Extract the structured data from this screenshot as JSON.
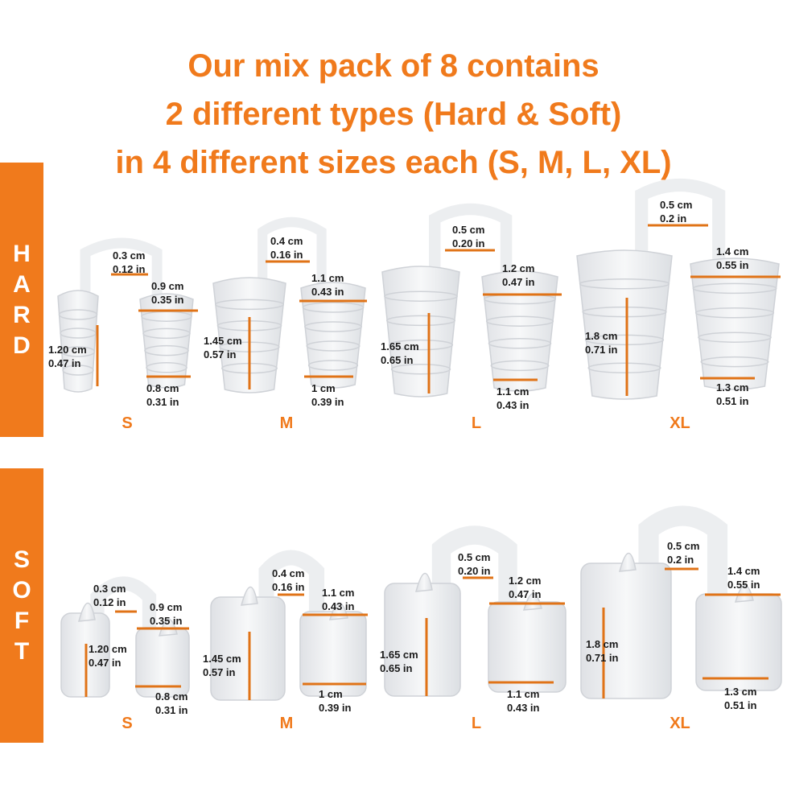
{
  "title": {
    "line1": "Our mix pack of 8 contains",
    "line2": "2 different types (Hard & Soft)",
    "line3": "in 4 different sizes each (S, M, L, XL)"
  },
  "colors": {
    "accent": "#f07a1c",
    "device": "#e9eaec",
    "device_edge": "#c9ccd1",
    "text": "#1a1a1a"
  },
  "hard": {
    "side_label": [
      "H",
      "A",
      "R",
      "D"
    ],
    "sizes": [
      {
        "size": "S",
        "top_cm": "0.3 cm",
        "top_in": "0.12 in",
        "right_cm": "0.9 cm",
        "right_in": "0.35 in",
        "height_cm": "1.20 cm",
        "height_in": "0.47 in",
        "bottom_cm": "0.8 cm",
        "bottom_in": "0.31 in"
      },
      {
        "size": "M",
        "top_cm": "0.4 cm",
        "top_in": "0.16 in",
        "right_cm": "1.1 cm",
        "right_in": "0.43 in",
        "height_cm": "1.45 cm",
        "height_in": "0.57 in",
        "bottom_cm": "1 cm",
        "bottom_in": "0.39 in"
      },
      {
        "size": "L",
        "top_cm": "0.5 cm",
        "top_in": "0.20 in",
        "right_cm": "1.2 cm",
        "right_in": "0.47 in",
        "height_cm": "1.65 cm",
        "height_in": "0.65 in",
        "bottom_cm": "1.1 cm",
        "bottom_in": "0.43 in"
      },
      {
        "size": "XL",
        "top_cm": "0.5 cm",
        "top_in": "0.2 in",
        "right_cm": "1.4 cm",
        "right_in": "0.55 in",
        "height_cm": "1.8 cm",
        "height_in": "0.71 in",
        "bottom_cm": "1.3 cm",
        "bottom_in": "0.51 in"
      }
    ]
  },
  "soft": {
    "side_label": [
      "S",
      "O",
      "F",
      "T"
    ],
    "sizes": [
      {
        "size": "S",
        "top_cm": "0.3 cm",
        "top_in": "0.12 in",
        "right_cm": "0.9 cm",
        "right_in": "0.35 in",
        "height_cm": "1.20 cm",
        "height_in": "0.47 in",
        "bottom_cm": "0.8 cm",
        "bottom_in": "0.31 in"
      },
      {
        "size": "M",
        "top_cm": "0.4 cm",
        "top_in": "0.16 in",
        "right_cm": "1.1 cm",
        "right_in": "0.43 in",
        "height_cm": "1.45 cm",
        "height_in": "0.57 in",
        "bottom_cm": "1 cm",
        "bottom_in": "0.39 in"
      },
      {
        "size": "L",
        "top_cm": "0.5 cm",
        "top_in": "0.20 in",
        "right_cm": "1.2 cm",
        "right_in": "0.47 in",
        "height_cm": "1.65 cm",
        "height_in": "0.65 in",
        "bottom_cm": "1.1 cm",
        "bottom_in": "0.43 in"
      },
      {
        "size": "XL",
        "top_cm": "0.5 cm",
        "top_in": "0.2 in",
        "right_cm": "1.4 cm",
        "right_in": "0.55 in",
        "height_cm": "1.8 cm",
        "height_in": "0.71 in",
        "bottom_cm": "1.3 cm",
        "bottom_in": "0.51 in"
      }
    ]
  }
}
